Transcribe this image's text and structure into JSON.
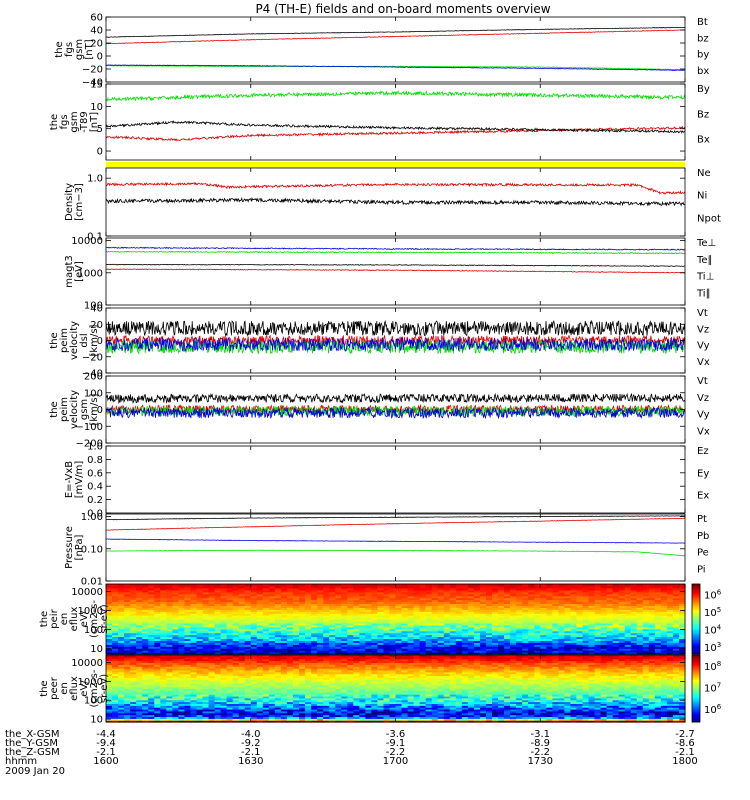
{
  "title": "P4 (TH-E) fields and on-board moments overview",
  "colors": {
    "black": "#000000",
    "red": "#e00000",
    "green": "#00e000",
    "blue": "#0000e0",
    "yellow": "#ffff00"
  },
  "chart_data": [
    {
      "type": "line",
      "id": "fgs_gsm",
      "ylabel": [
        "the",
        "fgs",
        "gsm",
        "[nT]"
      ],
      "yticks": [
        "60",
        "40",
        "20",
        "0",
        "−20",
        "−40"
      ],
      "ytick_values": [
        60,
        40,
        20,
        0,
        -20,
        -40
      ],
      "ylim": [
        -40,
        60
      ],
      "ylog": false,
      "series": [
        {
          "name": "Bt",
          "color": "red_black",
          "values_x": [
            1600,
            1630,
            1700,
            1730,
            1800
          ],
          "values": [
            29,
            34,
            37,
            41,
            44
          ],
          "noise": 0.3
        },
        {
          "name": "bz",
          "values_x": [
            1600,
            1630,
            1700,
            1730,
            1800
          ],
          "values": [
            19,
            25,
            30,
            35,
            40
          ],
          "noise": 0.4
        },
        {
          "name": "by",
          "values_x": [
            1600,
            1630,
            1700,
            1730,
            1800
          ],
          "values": [
            -15,
            -16,
            -16,
            -17,
            -21
          ],
          "noise": 0.4
        },
        {
          "name": "bx",
          "values_x": [
            1600,
            1630,
            1700,
            1730,
            1800
          ],
          "values": [
            -14,
            -15,
            -17,
            -19,
            -22
          ],
          "noise": 0.4
        }
      ]
    },
    {
      "type": "line",
      "id": "fgs_tb9",
      "ylabel": [
        "the",
        "fgs",
        "gsm",
        "-T89",
        "[nT]"
      ],
      "yticks": [
        "15",
        "10",
        "5",
        "0"
      ],
      "ytick_values": [
        15,
        10,
        5,
        0
      ],
      "ylim": [
        -2,
        15
      ],
      "ylog": false,
      "series": [
        {
          "name": "By",
          "values_x": [
            1600,
            1630,
            1700,
            1730,
            1800
          ],
          "values": [
            11.5,
            12.5,
            13,
            12.5,
            12
          ],
          "noise": 0.4
        },
        {
          "name": "Bz",
          "values_x": [
            1600,
            1615,
            1630,
            1700,
            1730,
            1800
          ],
          "values": [
            3.2,
            2.5,
            3.5,
            4.0,
            4.6,
            5.2
          ],
          "noise": 0.25
        },
        {
          "name": "Bx",
          "values_x": [
            1600,
            1615,
            1630,
            1700,
            1730,
            1800
          ],
          "values": [
            5.5,
            6.5,
            5.8,
            5.2,
            4.8,
            4.3
          ],
          "noise": 0.25
        }
      ]
    },
    {
      "type": "line",
      "id": "density",
      "ylabel": [
        "Density",
        "[cm−3]"
      ],
      "yticks": [
        "1.0",
        "0.1"
      ],
      "ytick_values": [
        1.0,
        0.1
      ],
      "ylim": [
        0.1,
        1.5
      ],
      "ylog": true,
      "series": [
        {
          "name": "Ne",
          "values_x": [
            1600,
            1620,
            1625,
            1700,
            1750,
            1755,
            1800
          ],
          "values": [
            0.78,
            0.8,
            0.7,
            0.78,
            0.76,
            0.55,
            0.57
          ],
          "noise": 0.02
        },
        {
          "name": "Ni",
          "values_x": [
            1600,
            1630,
            1700,
            1730,
            1800
          ],
          "values": [
            0.4,
            0.42,
            0.38,
            0.38,
            0.36
          ],
          "noise": 0.03
        },
        {
          "name": "Npot",
          "values_x": [],
          "values": [],
          "noise": 0
        }
      ]
    },
    {
      "type": "line",
      "id": "temp",
      "ylabel": [
        "magt3",
        "[eV]"
      ],
      "yticks": [
        "10000",
        "1000",
        "100"
      ],
      "ytick_values": [
        10000,
        1000,
        100
      ],
      "ylim": [
        100,
        12000
      ],
      "ylog": true,
      "series": [
        {
          "name": "Te⊥",
          "values_x": [
            1600,
            1700,
            1800
          ],
          "values": [
            1300,
            1200,
            1000
          ],
          "noise": 0.01
        },
        {
          "name": "Te∥",
          "values_x": [
            1600,
            1700,
            1800
          ],
          "values": [
            1800,
            1750,
            1600
          ],
          "noise": 0.01
        },
        {
          "name": "Ti⊥",
          "values_x": [
            1600,
            1700,
            1800
          ],
          "values": [
            6000,
            5500,
            5200
          ],
          "noise": 0.015
        },
        {
          "name": "Ti∥",
          "values_x": [
            1600,
            1700,
            1800
          ],
          "values": [
            4500,
            4300,
            4000
          ],
          "noise": 0.015
        }
      ]
    },
    {
      "type": "line",
      "id": "velocity_dsl",
      "ylabel": [
        "the",
        "peim",
        "velocity",
        "dsl",
        "[km/s]"
      ],
      "yticks": [
        "40",
        "20",
        "0",
        "−20",
        "−40"
      ],
      "ytick_values": [
        40,
        20,
        0,
        -20,
        -40
      ],
      "ylim": [
        -40,
        40
      ],
      "ylog": false,
      "series": [
        {
          "name": "Vt",
          "values_x": [
            1600,
            1800
          ],
          "values": [
            15,
            15
          ],
          "noise": 9
        },
        {
          "name": "Vz",
          "values_x": [
            1600,
            1800
          ],
          "values": [
            0,
            0
          ],
          "noise": 6
        },
        {
          "name": "Vy",
          "values_x": [
            1600,
            1800
          ],
          "values": [
            -8,
            -8
          ],
          "noise": 8
        },
        {
          "name": "Vx",
          "values_x": [
            1600,
            1800
          ],
          "values": [
            -5,
            -5
          ],
          "noise": 8
        }
      ]
    },
    {
      "type": "line",
      "id": "velocity_gsm",
      "ylabel": [
        "the",
        "peim",
        "velocity",
        "gsm",
        "[km/s]"
      ],
      "yticks": [
        "200",
        "100",
        "0",
        "−100",
        "−200"
      ],
      "ytick_values": [
        200,
        100,
        0,
        -100,
        -200
      ],
      "ylim": [
        -200,
        200
      ],
      "ylog": false,
      "series": [
        {
          "name": "Vt",
          "values_x": [
            1600,
            1800
          ],
          "values": [
            65,
            70
          ],
          "noise": 25
        },
        {
          "name": "Vz",
          "values_x": [
            1600,
            1800
          ],
          "values": [
            0,
            0
          ],
          "noise": 25
        },
        {
          "name": "Vy",
          "values_x": [
            1600,
            1800
          ],
          "values": [
            -10,
            -10
          ],
          "noise": 30
        },
        {
          "name": "Vx",
          "values_x": [
            1600,
            1800
          ],
          "values": [
            -20,
            -20
          ],
          "noise": 30
        }
      ]
    },
    {
      "type": "line",
      "id": "efield",
      "ylabel": [
        "E=-VxB",
        "[mV/m]"
      ],
      "yticks": [
        "1.0",
        "0.8",
        "0.6",
        "0.4",
        "0.2",
        "0.0"
      ],
      "ytick_values": [
        1.0,
        0.8,
        0.6,
        0.4,
        0.2,
        0.0
      ],
      "ylim": [
        0,
        1
      ],
      "ylog": false,
      "series": [
        {
          "name": "Ez",
          "values_x": [],
          "values": [],
          "noise": 0
        },
        {
          "name": "Ey",
          "values_x": [],
          "values": [],
          "noise": 0
        },
        {
          "name": "Ex",
          "values_x": [],
          "values": [],
          "noise": 0
        }
      ]
    },
    {
      "type": "line",
      "id": "pressure",
      "ylabel": [
        "Pressure",
        "[nPa]"
      ],
      "yticks": [
        "1.00",
        "0.10",
        "0.01"
      ],
      "ytick_values": [
        1.0,
        0.1,
        0.01
      ],
      "ylim": [
        0.01,
        1.2
      ],
      "ylog": true,
      "series": [
        {
          "name": "Pt",
          "values_x": [
            1600,
            1630,
            1700,
            1730,
            1800
          ],
          "values": [
            0.8,
            0.9,
            0.95,
            1.0,
            1.05
          ],
          "noise": 0.005
        },
        {
          "name": "Pb",
          "values_x": [
            1600,
            1630,
            1700,
            1730,
            1800
          ],
          "values": [
            0.38,
            0.48,
            0.6,
            0.72,
            0.88
          ],
          "noise": 0.005
        },
        {
          "name": "Pe",
          "values_x": [
            1600,
            1630,
            1700,
            1730,
            1750,
            1800
          ],
          "values": [
            0.085,
            0.09,
            0.088,
            0.085,
            0.08,
            0.06
          ],
          "noise": 0.005
        },
        {
          "name": "Pi",
          "values_x": [
            1600,
            1630,
            1700,
            1730,
            1800
          ],
          "values": [
            0.2,
            0.18,
            0.17,
            0.16,
            0.15
          ],
          "noise": 0.005
        }
      ]
    },
    {
      "type": "heatmap",
      "id": "peir_eflux",
      "ylabel": [
        "the",
        "peir",
        "en",
        "eflux",
        "eV/",
        "(cm2-s-",
        "sr-eV)"
      ],
      "yticks": [
        "10000",
        "1000",
        "100",
        "10"
      ],
      "ytick_values": [
        10000,
        1000,
        100,
        10
      ],
      "ylim": [
        5,
        25000
      ],
      "ylog": true,
      "colorbar": {
        "ticks": [
          "10",
          "10",
          "10",
          "10"
        ],
        "exponents": [
          "6",
          "5",
          "4",
          "3"
        ],
        "tick_values": [
          6,
          5,
          4,
          3
        ],
        "range": [
          2.6,
          6.6
        ]
      },
      "profile_energy": [
        10,
        30,
        100,
        300,
        1000,
        3000,
        10000,
        20000
      ],
      "profile_logflux": [
        3.0,
        3.8,
        4.4,
        4.9,
        5.3,
        5.7,
        5.9,
        6.2
      ]
    },
    {
      "type": "heatmap",
      "id": "peer_eflux",
      "ylabel": [
        "the",
        "peer",
        "en",
        "eflux",
        "eV/",
        "(cm2-s-",
        "sr-eV)"
      ],
      "yticks": [
        "10000",
        "1000",
        "100",
        "10"
      ],
      "ytick_values": [
        10000,
        1000,
        100,
        10
      ],
      "ylim": [
        7,
        25000
      ],
      "ylog": true,
      "colorbar": {
        "ticks": [
          "10",
          "10",
          "10"
        ],
        "exponents": [
          "8",
          "7",
          "6"
        ],
        "tick_values": [
          8,
          7,
          6
        ],
        "range": [
          5.4,
          8.5
        ]
      },
      "profile_energy": [
        8,
        12,
        20,
        40,
        100,
        300,
        1000,
        3000,
        10000,
        20000
      ],
      "profile_logflux": [
        8.5,
        6.2,
        5.7,
        6.1,
        6.6,
        6.9,
        7.2,
        7.5,
        7.9,
        8.2
      ]
    }
  ],
  "legends": [
    [
      {
        "label": "Bt",
        "color": "black"
      },
      {
        "label": "bz",
        "color": "red"
      },
      {
        "label": "by",
        "color": "green"
      },
      {
        "label": "bx",
        "color": "blue"
      }
    ],
    [
      {
        "label": "By",
        "color": "green"
      },
      {
        "label": "Bz",
        "color": "red"
      },
      {
        "label": "Bx",
        "color": "black"
      }
    ],
    [
      {
        "label": "Ne",
        "color": "red"
      },
      {
        "label": "Ni",
        "color": "black"
      },
      {
        "label": "Npot",
        "color": "blue"
      }
    ],
    [
      {
        "label": "Te⊥",
        "color": "red"
      },
      {
        "label": "Te∥",
        "color": "black"
      },
      {
        "label": "Ti⊥",
        "color": "blue"
      },
      {
        "label": "Ti∥",
        "color": "green"
      }
    ],
    [
      {
        "label": "Vt",
        "color": "black"
      },
      {
        "label": "Vz",
        "color": "red"
      },
      {
        "label": "Vy",
        "color": "green"
      },
      {
        "label": "Vx",
        "color": "blue"
      }
    ],
    [
      {
        "label": "Vt",
        "color": "black"
      },
      {
        "label": "Vz",
        "color": "red"
      },
      {
        "label": "Vy",
        "color": "green"
      },
      {
        "label": "Vx",
        "color": "blue"
      }
    ],
    [
      {
        "label": "Ez",
        "color": "red"
      },
      {
        "label": "Ey",
        "color": "green"
      },
      {
        "label": "Ex",
        "color": "blue"
      }
    ],
    [
      {
        "label": "Pt",
        "color": "black"
      },
      {
        "label": "Pb",
        "color": "red"
      },
      {
        "label": "Pe",
        "color": "green"
      },
      {
        "label": "Pi",
        "color": "blue"
      }
    ]
  ],
  "ephemeris": {
    "labels": [
      "the_X-GSM",
      "the_Y-GSM",
      "the_Z-GSM",
      "hhmm",
      "2009 Jan 20"
    ],
    "columns": [
      {
        "x": 1600,
        "values": [
          "-4.4",
          "-9.4",
          "-2.1",
          "1600"
        ]
      },
      {
        "x": 1630,
        "values": [
          "-4.0",
          "-9.2",
          "-2.1",
          "1630"
        ]
      },
      {
        "x": 1700,
        "values": [
          "-3.6",
          "-9.1",
          "-2.2",
          "1700"
        ]
      },
      {
        "x": 1730,
        "values": [
          "-3.1",
          "-8.9",
          "-2.2",
          "1730"
        ]
      },
      {
        "x": 1800,
        "values": [
          "-2.7",
          "-8.6",
          "-2.1",
          "1800"
        ]
      }
    ]
  }
}
